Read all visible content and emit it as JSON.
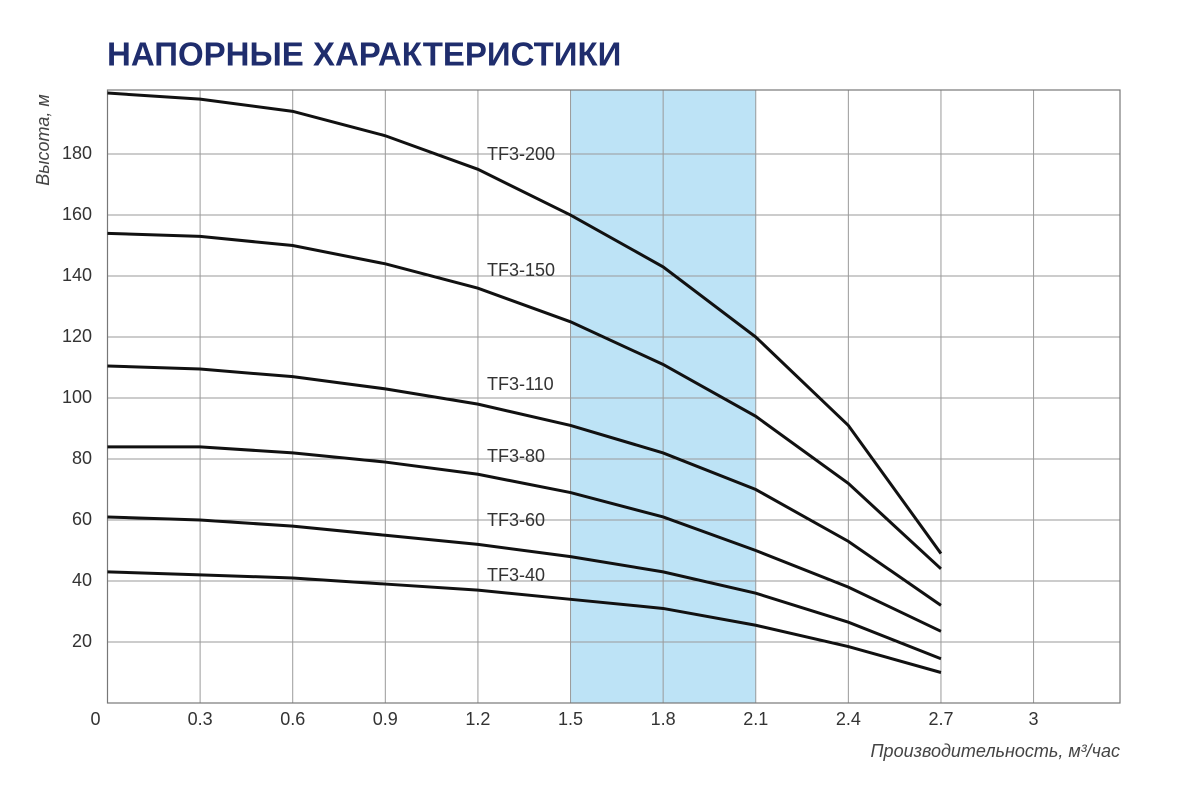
{
  "chart_data": {
    "type": "line",
    "title": "НАПОРНЫЕ ХАРАКТЕРИСТИКИ",
    "x_label": "Производительность, м³/час",
    "y_label": "Высота, м",
    "x": [
      0,
      0.3,
      0.6,
      0.9,
      1.2,
      1.5,
      1.8,
      2.1,
      2.4,
      2.7
    ],
    "series": [
      {
        "name": "TF3-200",
        "color": "#111111",
        "values": [
          200,
          198,
          194,
          186,
          175,
          160,
          143,
          120,
          91,
          49
        ]
      },
      {
        "name": "TF3-150",
        "color": "#111111",
        "values": [
          154,
          153,
          150,
          144,
          136,
          125,
          111,
          94,
          72,
          44
        ]
      },
      {
        "name": "TF3-110",
        "color": "#111111",
        "values": [
          110.5,
          109.5,
          107,
          103,
          98,
          91,
          82,
          70,
          53,
          32
        ]
      },
      {
        "name": "TF3-80",
        "color": "#111111",
        "values": [
          84,
          84,
          82,
          79,
          75,
          69,
          61,
          50,
          38,
          23.5
        ]
      },
      {
        "name": "TF3-60",
        "color": "#111111",
        "values": [
          61,
          60,
          58,
          55,
          52,
          48,
          43,
          36,
          26.5,
          14.5
        ]
      },
      {
        "name": "TF3-40",
        "color": "#111111",
        "values": [
          43,
          42,
          41,
          39,
          37,
          34,
          31,
          25.5,
          18.5,
          10
        ]
      }
    ],
    "highlight": [
      1.5,
      2.1
    ],
    "highlight_color": "#bde3f6",
    "xlim": [
      0,
      3.28
    ],
    "ylim": [
      0,
      201
    ],
    "xticks": [
      0,
      0.3,
      0.6,
      0.9,
      1.2,
      1.5,
      1.8,
      2.1,
      2.4,
      2.7,
      3
    ],
    "yticks": [
      20,
      40,
      60,
      80,
      100,
      120,
      140,
      160,
      180
    ],
    "grid": true
  }
}
